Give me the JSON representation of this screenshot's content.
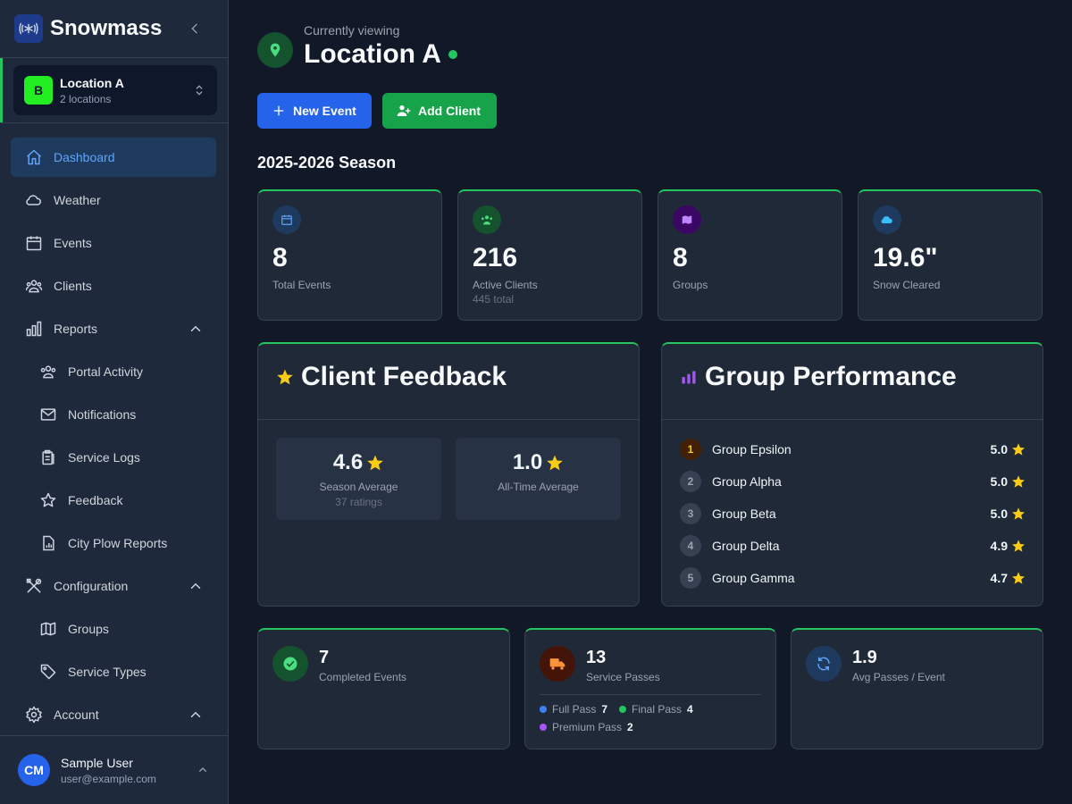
{
  "app": {
    "name": "Snowmass"
  },
  "location_switcher": {
    "badge": "B",
    "name": "Location A",
    "sub": "2 locations"
  },
  "nav": {
    "dashboard": "Dashboard",
    "weather": "Weather",
    "events": "Events",
    "clients": "Clients",
    "reports": "Reports",
    "portal_activity": "Portal Activity",
    "notifications": "Notifications",
    "service_logs": "Service Logs",
    "feedback": "Feedback",
    "city_plow_reports": "City Plow Reports",
    "configuration": "Configuration",
    "groups": "Groups",
    "service_types": "Service Types",
    "account": "Account"
  },
  "user": {
    "initials": "CM",
    "name": "Sample User",
    "email": "user@example.com"
  },
  "header": {
    "viewing_label": "Currently viewing",
    "title": "Location A"
  },
  "actions": {
    "new_event": "New Event",
    "add_client": "Add Client"
  },
  "season": "2025-2026 Season",
  "stats": [
    {
      "value": "8",
      "label": "Total Events",
      "sub": ""
    },
    {
      "value": "216",
      "label": "Active Clients",
      "sub": "445 total"
    },
    {
      "value": "8",
      "label": "Groups",
      "sub": ""
    },
    {
      "value": "19.6\"",
      "label": "Snow Cleared",
      "sub": ""
    }
  ],
  "feedback": {
    "title": "Client Feedback",
    "season_avg": "4.6",
    "season_label": "Season Average",
    "season_sub": "37 ratings",
    "alltime_avg": "1.0",
    "alltime_label": "All-Time Average"
  },
  "group_performance": {
    "title": "Group Performance",
    "rows": [
      {
        "rank": "1",
        "name": "Group Epsilon",
        "score": "5.0"
      },
      {
        "rank": "2",
        "name": "Group Alpha",
        "score": "5.0"
      },
      {
        "rank": "3",
        "name": "Group Beta",
        "score": "5.0"
      },
      {
        "rank": "4",
        "name": "Group Delta",
        "score": "4.9"
      },
      {
        "rank": "5",
        "name": "Group Gamma",
        "score": "4.7"
      }
    ]
  },
  "bottom": {
    "completed": {
      "value": "7",
      "label": "Completed Events"
    },
    "passes": {
      "value": "13",
      "label": "Service Passes",
      "items": [
        {
          "name": "Full Pass",
          "count": "7",
          "color": "#3b82f6"
        },
        {
          "name": "Final Pass",
          "count": "4",
          "color": "#22c55e"
        },
        {
          "name": "Premium Pass",
          "count": "2",
          "color": "#a855f7"
        }
      ]
    },
    "avg": {
      "value": "1.9",
      "label": "Avg Passes / Event"
    }
  },
  "colors": {
    "accent": "#22c55e",
    "primary": "#2563eb",
    "star": "#facc15"
  }
}
